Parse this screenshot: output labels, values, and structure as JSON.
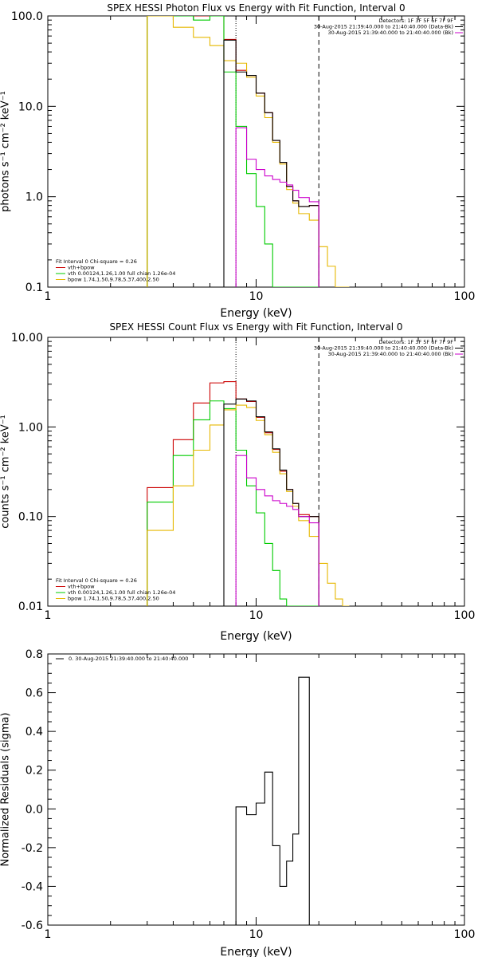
{
  "colors": {
    "data": "#000000",
    "total": "#cc0000",
    "vth": "#00cc00",
    "bpow": "#e6b800",
    "bk": "#cc00cc",
    "axis": "#000000"
  },
  "chart_data": [
    {
      "id": "photon",
      "type": "line",
      "title": "SPEX HESSI Photon Flux vs Energy with Fit Function, Interval 0",
      "xlabel": "Energy (keV)",
      "ylabel": "photons s⁻¹ cm⁻² keV⁻¹",
      "xscale": "log",
      "yscale": "log",
      "xlim": [
        1,
        100
      ],
      "ylim": [
        0.1,
        100
      ],
      "xticks": [
        {
          "v": 1,
          "label": "1"
        },
        {
          "v": 10,
          "label": "10"
        },
        {
          "v": 100,
          "label": "100"
        }
      ],
      "yticks": [
        {
          "v": 0.1,
          "label": "0.1"
        },
        {
          "v": 1,
          "label": "1.0"
        },
        {
          "v": 10,
          "label": "10.0"
        },
        {
          "v": 100,
          "label": "100.0"
        }
      ],
      "vlines": [
        {
          "x": 8,
          "style": "dotted"
        },
        {
          "x": 20,
          "style": "dashed"
        }
      ],
      "legend_top": [
        "Detectors: 1F 3F 5F 6F 7F 9F",
        "30-Aug-2015 21:39:40.000 to 21:40:40.000 (Data-Bk)",
        "30-Aug-2015 21:39:40.000 to 21:40:40.000 (Bk)"
      ],
      "legend_bottom": [
        "Fit Interval 0   Chi-square = 0.26",
        "vth+bpow",
        "vth 0.00124,1.26,1.00  full chian 1.26e-04",
        "bpow 1.74,1.50,9.78,5.37,400,2.50"
      ],
      "series": [
        {
          "key": "total",
          "edges": [
            3,
            4,
            5,
            6,
            7,
            8,
            9,
            10,
            11,
            12,
            13,
            14,
            15,
            16,
            18,
            20
          ],
          "values": [
            100,
            100,
            100,
            100,
            55,
            25,
            22,
            14,
            8.5,
            4.2,
            2.4,
            1.3,
            0.9,
            0.78,
            0.8
          ]
        },
        {
          "key": "vth",
          "edges": [
            3,
            4,
            5,
            6,
            7,
            8,
            9,
            10,
            11,
            12,
            13,
            14,
            15,
            16,
            18,
            20
          ],
          "values": [
            100,
            100,
            90,
            100,
            24,
            6,
            1.8,
            0.78,
            0.3,
            0.1,
            0.1,
            0.1,
            0.1,
            0.1,
            0.1
          ]
        },
        {
          "key": "bpow",
          "edges": [
            3,
            4,
            5,
            6,
            7,
            8,
            9,
            10,
            11,
            12,
            13,
            14,
            15,
            16,
            18,
            20,
            22,
            24,
            26,
            28
          ],
          "values": [
            100,
            75,
            58,
            47,
            32,
            30,
            21,
            13,
            7.5,
            4,
            2.3,
            1.2,
            0.85,
            0.65,
            0.55,
            0.28,
            0.17,
            0.1,
            0.1
          ]
        },
        {
          "key": "data",
          "edges": [
            7,
            8,
            9,
            10,
            11,
            12,
            13,
            14,
            15,
            16,
            18,
            20
          ],
          "values": [
            54,
            24,
            22,
            14,
            8.5,
            4.2,
            2.4,
            1.3,
            0.9,
            0.78,
            0.8
          ]
        },
        {
          "key": "bk",
          "edges": [
            8,
            9,
            10,
            11,
            12,
            13,
            14,
            15,
            16,
            18,
            20
          ],
          "values": [
            5.8,
            2.6,
            2.0,
            1.7,
            1.55,
            1.45,
            1.35,
            1.18,
            0.98,
            0.88
          ]
        }
      ]
    },
    {
      "id": "count",
      "type": "line",
      "title": "SPEX HESSI Count Flux vs Energy with Fit Function, Interval 0",
      "xlabel": "Energy (keV)",
      "ylabel": "counts s⁻¹ cm⁻² keV⁻¹",
      "xscale": "log",
      "yscale": "log",
      "xlim": [
        1,
        100
      ],
      "ylim": [
        0.01,
        10
      ],
      "xticks": [
        {
          "v": 1,
          "label": "1"
        },
        {
          "v": 10,
          "label": "10"
        },
        {
          "v": 100,
          "label": "100"
        }
      ],
      "yticks": [
        {
          "v": 0.01,
          "label": "0.01"
        },
        {
          "v": 0.1,
          "label": "0.10"
        },
        {
          "v": 1,
          "label": "1.00"
        },
        {
          "v": 10,
          "label": "10.00"
        }
      ],
      "vlines": [
        {
          "x": 8,
          "style": "dotted"
        },
        {
          "x": 20,
          "style": "dashed"
        }
      ],
      "legend_top": [
        "Detectors: 1F 3F 5F 6F 7F 9F",
        "30-Aug-2015 21:39:40.000 to 21:40:40.000 (Data-Bk)",
        "30-Aug-2015 21:39:40.000 to 21:40:40.000 (Bk)"
      ],
      "legend_bottom": [
        "Fit Interval 0   Chi-square = 0.26",
        "vth+bpow",
        "vth 0.00124,1.26,1.00  full chian 1.26e-04",
        "bpow 1.74,1.50,9.78,5.37,400,2.50"
      ],
      "series": [
        {
          "key": "total",
          "edges": [
            3,
            4,
            5,
            6,
            7,
            8,
            9,
            10,
            11,
            12,
            13,
            14,
            15,
            16,
            18,
            20
          ],
          "values": [
            0.21,
            0.72,
            1.85,
            3.1,
            3.2,
            2.05,
            1.92,
            1.28,
            0.86,
            0.56,
            0.32,
            0.2,
            0.14,
            0.105,
            0.1
          ]
        },
        {
          "key": "vth",
          "edges": [
            3,
            4,
            5,
            6,
            7,
            8,
            9,
            10,
            11,
            12,
            13,
            14,
            15,
            16,
            18,
            20
          ],
          "values": [
            0.145,
            0.48,
            1.2,
            1.95,
            1.6,
            0.55,
            0.22,
            0.11,
            0.05,
            0.025,
            0.012,
            0.01,
            0.01,
            0.01,
            0.01
          ]
        },
        {
          "key": "bpow",
          "edges": [
            3,
            4,
            5,
            6,
            7,
            8,
            9,
            10,
            11,
            12,
            13,
            14,
            15,
            16,
            18,
            20,
            22,
            24,
            26,
            28
          ],
          "values": [
            0.07,
            0.22,
            0.55,
            1.05,
            1.55,
            1.75,
            1.65,
            1.18,
            0.82,
            0.52,
            0.3,
            0.19,
            0.13,
            0.09,
            0.06,
            0.03,
            0.018,
            0.012,
            0.01
          ]
        },
        {
          "key": "data",
          "edges": [
            7,
            8,
            9,
            10,
            11,
            12,
            13,
            14,
            15,
            16,
            18,
            20
          ],
          "values": [
            1.8,
            2.05,
            1.95,
            1.3,
            0.88,
            0.57,
            0.33,
            0.2,
            0.14,
            0.1,
            0.1
          ]
        },
        {
          "key": "bk",
          "edges": [
            8,
            9,
            10,
            11,
            12,
            13,
            14,
            15,
            16,
            18,
            20
          ],
          "values": [
            0.48,
            0.27,
            0.2,
            0.17,
            0.15,
            0.14,
            0.13,
            0.12,
            0.1,
            0.085
          ]
        }
      ]
    },
    {
      "id": "resid",
      "type": "line",
      "title": "",
      "xlabel": "Energy (keV)",
      "ylabel": "Normalized Residuals (sigma)",
      "xscale": "log",
      "yscale": "linear",
      "xlim": [
        1,
        100
      ],
      "ylim": [
        -0.6,
        0.8
      ],
      "xticks": [
        {
          "v": 1,
          "label": "1"
        },
        {
          "v": 10,
          "label": "10"
        },
        {
          "v": 100,
          "label": "100"
        }
      ],
      "yticks": [
        {
          "v": -0.6,
          "label": "-0.6"
        },
        {
          "v": -0.4,
          "label": "-0.4"
        },
        {
          "v": -0.2,
          "label": "-0.2"
        },
        {
          "v": 0,
          "label": "0.0"
        },
        {
          "v": 0.2,
          "label": "0.2"
        },
        {
          "v": 0.4,
          "label": "0.4"
        },
        {
          "v": 0.6,
          "label": "0.6"
        },
        {
          "v": 0.8,
          "label": "0.8"
        }
      ],
      "vlines": [],
      "legend_top": [
        "0. 30-Aug-2015 21:39:40.000 to 21:40:40.000"
      ],
      "legend_bottom": [],
      "series": [
        {
          "key": "data",
          "edges": [
            8,
            9,
            10,
            11,
            12,
            13,
            14,
            15,
            16,
            18,
            20
          ],
          "values": [
            0.01,
            -0.03,
            0.03,
            0.19,
            -0.19,
            -0.4,
            -0.27,
            -0.13,
            0.68,
            -0.6
          ],
          "close": true
        }
      ]
    }
  ]
}
